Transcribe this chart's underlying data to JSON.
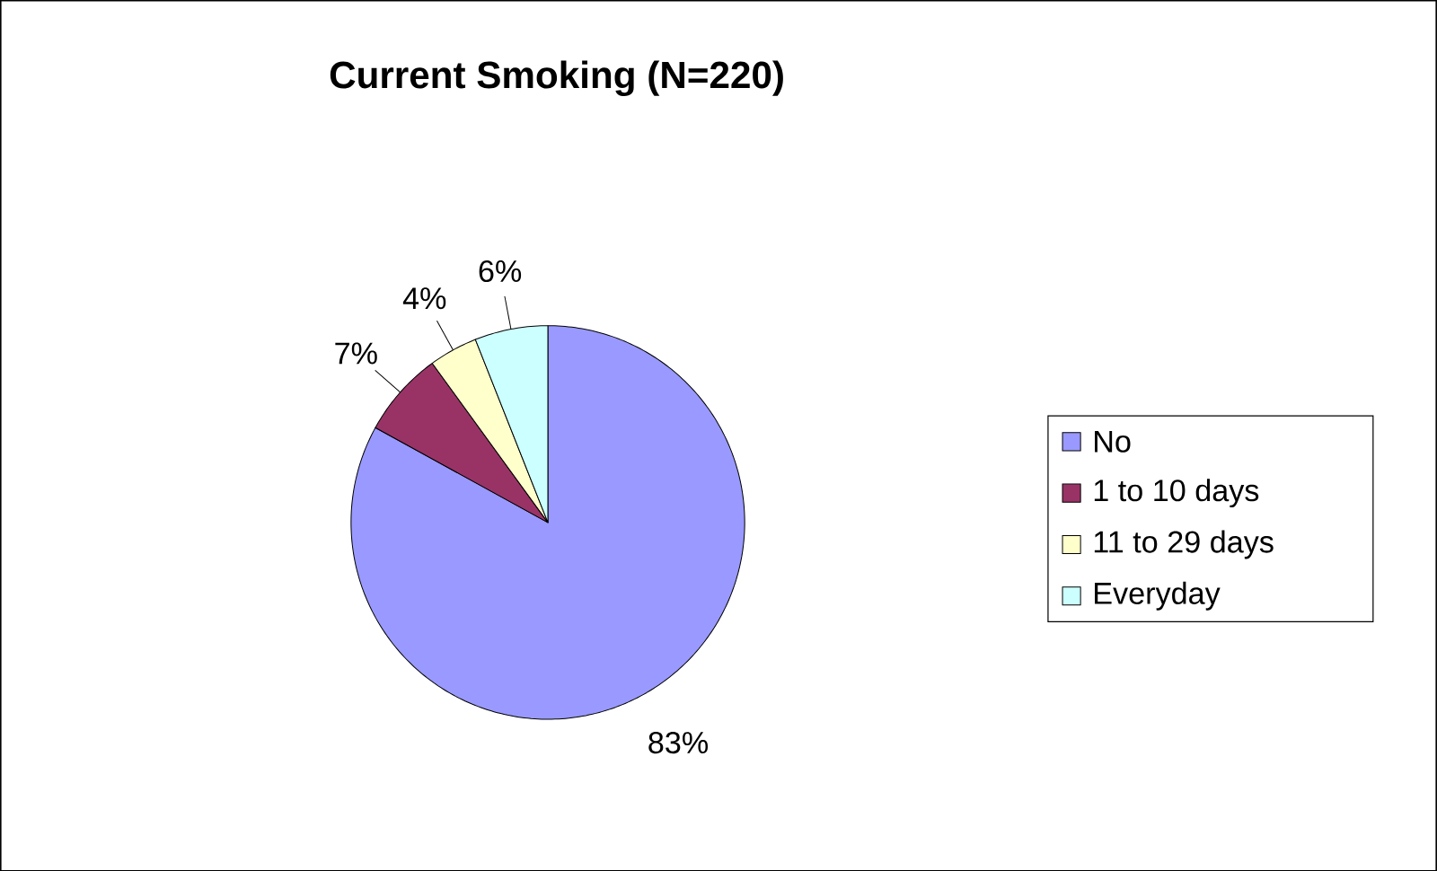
{
  "chart_data": {
    "type": "pie",
    "title": "Current Smoking (N=220)",
    "categories": [
      "No",
      "1 to 10 days",
      "11 to 29 days",
      "Everyday"
    ],
    "values": [
      83,
      7,
      4,
      6
    ],
    "colors": [
      "#9999ff",
      "#993366",
      "#ffffcc",
      "#ccffff"
    ],
    "value_labels": [
      "83%",
      "7%",
      "4%",
      "6%"
    ],
    "legend": "right"
  }
}
